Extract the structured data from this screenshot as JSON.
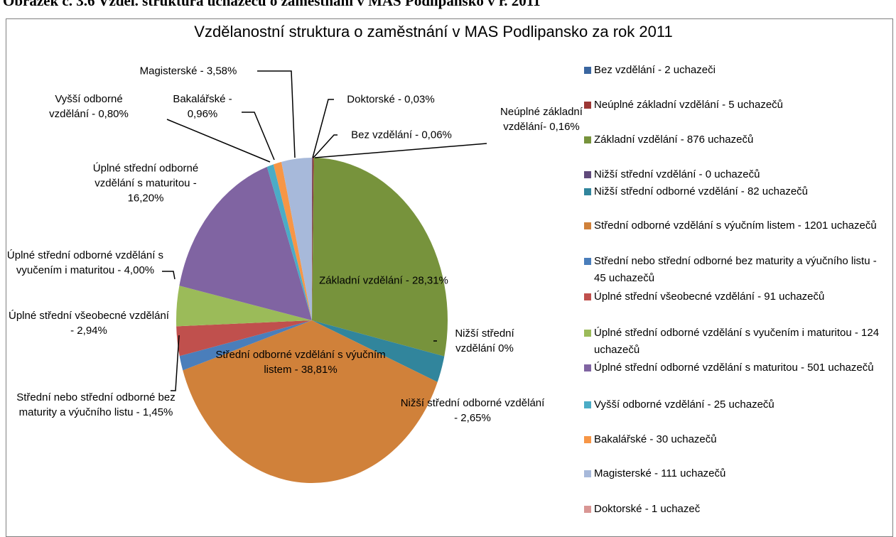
{
  "caption": "Obrázek č. 3.6 Vzděl. struktura uchazečů o zaměstnání v MAS Podlipansko v r. 2011",
  "chart_data": {
    "type": "pie",
    "title": "Vzdělanostní struktura o zaměstnání v MAS Podlipansko za rok 2011",
    "categories": [
      "Bez vzdělání - 2 uchazeči",
      "Neúplné základní vzdělání - 5 uchazečů",
      "Základní vzdělání - 876 uchazečů",
      "Nižší střední vzdělání - 0 uchazečů",
      "Nižší střední odborné vzdělání - 82 uchazečů",
      "Střední odborné vzdělání s výučním listem - 1201 uchazečů",
      "Střední nebo střední odborné bez maturity a výučního listu - 45 uchazečů",
      "Úplné střední všeobecné vzdělání  - 91 uchazečů",
      "Úplné střední odborné vzdělání s vyučením i maturitou - 124 uchazečů",
      "Úplné střední odborné vzdělání s maturitou - 501  uchazečů",
      "Vyšší odborné vzdělání - 25  uchazečů",
      "Bakalářské - 30 uchazečů",
      "Magisterské - 111  uchazečů",
      "Doktorské - 1 uchazeč"
    ],
    "values": [
      0.06,
      0.16,
      28.31,
      0,
      2.65,
      38.81,
      1.45,
      2.94,
      4.0,
      16.2,
      0.8,
      0.96,
      3.58,
      0.03
    ],
    "value_labels": [
      "Bez vzdělání - 0,06%",
      "Neúplné základní vzdělání- 0,16%",
      "Základní vzdělání - 28,31%",
      "Nižší střední vzdělání  0%",
      "Nižší střední odborné vzdělání - 2,65%",
      "Střední odborné vzdělání s výučním listem - 38,81%",
      "Střední nebo střední odborné bez maturity a výučního listu - 1,45%",
      "Úplné střední všeobecné vzdělání  - 2,94%",
      "Úplné střední odborné vzdělání s vyučením i maturitou - 4,00%",
      "Úplné střední odborné vzdělání s maturitou - 16,20%",
      "Vyšší odborné vzdělání - 0,80%",
      "Bakalářské - 0,96%",
      "Magisterské - 3,58%",
      "Doktorské - 0,03%"
    ],
    "colors": [
      "#3a66a0",
      "#9c3735",
      "#77933c",
      "#604a7b",
      "#31859c",
      "#d0813a",
      "#4a7ebb",
      "#c0504d",
      "#9bbb59",
      "#8064a2",
      "#4bacc6",
      "#f79646",
      "#a7b9da",
      "#d99694"
    ],
    "legend": "right"
  }
}
